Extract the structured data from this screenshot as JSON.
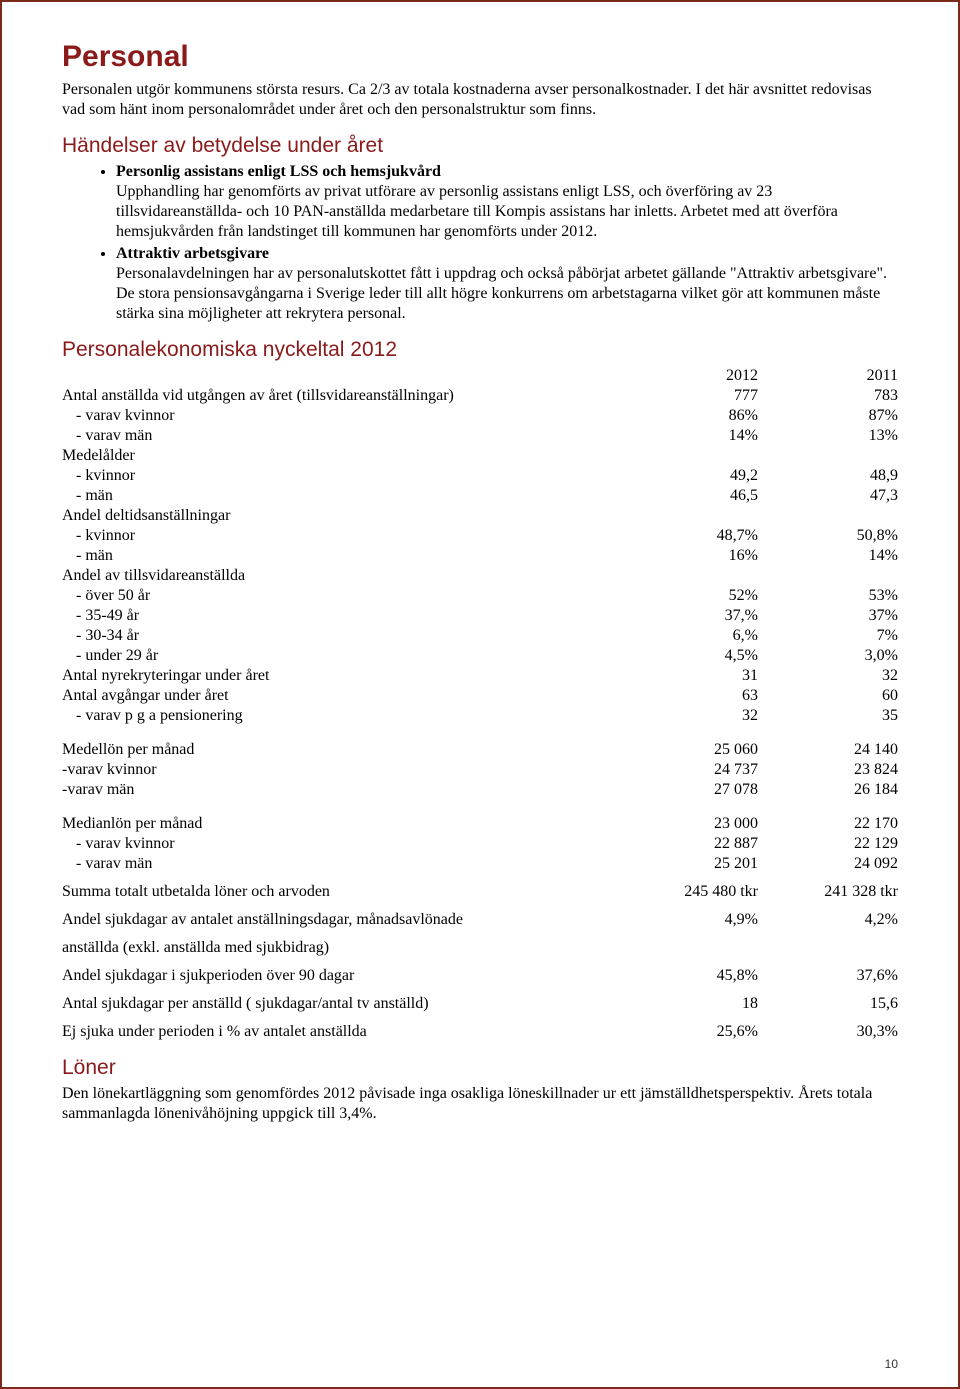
{
  "page_number": "10",
  "title": "Personal",
  "intro": "Personalen utgör kommunens största resurs. Ca 2/3 av totala kostnaderna avser personalkostnader. I det här avsnittet redovisas vad som hänt inom personalområdet under året och den personalstruktur som finns.",
  "section_events_heading": "Händelser av betydelse under året",
  "bullets": [
    {
      "title": "Personlig assistans enligt LSS och hemsjukvård",
      "body": "Upphandling har genomförts av privat utförare av personlig assistans enligt LSS, och överföring av 23 tillsvidareanställda- och 10 PAN-anställda medarbetare till Kompis assistans har inletts. Arbetet med att överföra hemsjukvården från landstinget till kommunen har genomförts under 2012."
    },
    {
      "title": "Attraktiv arbetsgivare",
      "body": "Personalavdelningen har av personalutskottet fått i uppdrag och också påbörjat arbetet gällande \"Attraktiv arbetsgivare\". De stora pensionsavgångarna i Sverige leder till allt högre konkurrens om arbetstagarna vilket gör att kommunen måste stärka sina möjligheter att rekrytera personal."
    }
  ],
  "section_table_heading": "Personalekonomiska nyckeltal 2012",
  "table": {
    "header": {
      "c1": "2012",
      "c2": "2011"
    },
    "rows": [
      {
        "label": "Antal anställda vid utgången av året (tillsvidareanställningar)",
        "v1": "777",
        "v2": "783"
      },
      {
        "label": " - varav kvinnor",
        "v1": "86%",
        "v2": "87%",
        "indent": true
      },
      {
        "label": " - varav män",
        "v1": "14%",
        "v2": "13%",
        "indent": true
      },
      {
        "label": "Medelålder",
        "v1": "",
        "v2": ""
      },
      {
        "label": " - kvinnor",
        "v1": "49,2",
        "v2": "48,9",
        "indent": true
      },
      {
        "label": " - män",
        "v1": "46,5",
        "v2": "47,3",
        "indent": true
      },
      {
        "label": "Andel deltidsanställningar",
        "v1": "",
        "v2": ""
      },
      {
        "label": " - kvinnor",
        "v1": "48,7%",
        "v2": "50,8%",
        "indent": true
      },
      {
        "label": " - män",
        "v1": "16%",
        "v2": "14%",
        "indent": true
      },
      {
        "label": "Andel av tillsvidareanställda",
        "v1": "",
        "v2": ""
      },
      {
        "label": " - över 50 år",
        "v1": "52%",
        "v2": "53%",
        "indent": true
      },
      {
        "label": " - 35-49 år",
        "v1": "37,%",
        "v2": "37%",
        "indent": true
      },
      {
        "label": " - 30-34 år",
        "v1": "6,%",
        "v2": "7%",
        "indent": true
      },
      {
        "label": " - under 29 år",
        "v1": "4,5%",
        "v2": "3,0%",
        "indent": true
      },
      {
        "label": "Antal nyrekryteringar under året",
        "v1": "31",
        "v2": "32"
      },
      {
        "label": "Antal avgångar under året",
        "v1": "63",
        "v2": "60"
      },
      {
        "label": " - varav p g a pensionering",
        "v1": "32",
        "v2": "35",
        "indent": true
      }
    ],
    "group2": [
      {
        "label": "Medellön per månad",
        "v1": "25 060",
        "v2": "24 140"
      },
      {
        "label": "-varav kvinnor",
        "v1": "24 737",
        "v2": "23 824"
      },
      {
        "label": "-varav män",
        "v1": "27 078",
        "v2": "26 184"
      }
    ],
    "group3": [
      {
        "label": "Medianlön per månad",
        "v1": "23 000",
        "v2": "22 170"
      },
      {
        "label": " - varav kvinnor",
        "v1": "22 887",
        "v2": "22 129",
        "indent": true
      },
      {
        "label": " - varav män",
        "v1": "25 201",
        "v2": "24 092",
        "indent": true
      }
    ],
    "group4": [
      {
        "label": "Summa totalt utbetalda löner och arvoden",
        "v1": "245 480 tkr",
        "v2": "241 328 tkr"
      },
      {
        "label": "Andel sjukdagar av antalet anställningsdagar, månadsavlönade",
        "v1": "4,9%",
        "v2": "4,2%"
      },
      {
        "label": "anställda (exkl. anställda med sjukbidrag)",
        "v1": "",
        "v2": ""
      },
      {
        "label": "Andel sjukdagar i sjukperioden över 90 dagar",
        "v1": "45,8%",
        "v2": "37,6%"
      },
      {
        "label": "Antal sjukdagar per anställd ( sjukdagar/antal tv anställd)",
        "v1": "18",
        "v2": "15,6"
      },
      {
        "label": "Ej sjuka under perioden i % av antalet anställda",
        "v1": "25,6%",
        "v2": "30,3%"
      }
    ]
  },
  "section_wages_heading": "Löner",
  "wages_body": "Den lönekartläggning som genomfördes 2012 påvisade inga osakliga löneskillnader ur ett jämställdhetsperspektiv. Årets totala sammanlagda lönenivåhöjning uppgick till 3,4%."
}
